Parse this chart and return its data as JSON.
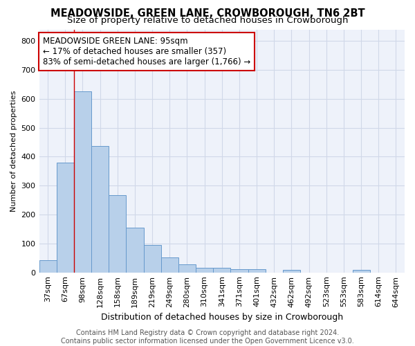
{
  "title": "MEADOWSIDE, GREEN LANE, CROWBOROUGH, TN6 2BT",
  "subtitle": "Size of property relative to detached houses in Crowborough",
  "xlabel": "Distribution of detached houses by size in Crowborough",
  "ylabel": "Number of detached properties",
  "categories": [
    "37sqm",
    "67sqm",
    "98sqm",
    "128sqm",
    "158sqm",
    "189sqm",
    "219sqm",
    "249sqm",
    "280sqm",
    "310sqm",
    "341sqm",
    "371sqm",
    "401sqm",
    "432sqm",
    "462sqm",
    "492sqm",
    "523sqm",
    "553sqm",
    "583sqm",
    "614sqm",
    "644sqm"
  ],
  "values": [
    43,
    380,
    625,
    438,
    268,
    155,
    95,
    52,
    28,
    15,
    15,
    10,
    10,
    0,
    8,
    0,
    0,
    0,
    8,
    0,
    0
  ],
  "bar_color": "#b8d0ea",
  "bar_edge_color": "#6699cc",
  "red_line_x": 1.5,
  "annotation_text": "MEADOWSIDE GREEN LANE: 95sqm\n← 17% of detached houses are smaller (357)\n83% of semi-detached houses are larger (1,766) →",
  "annotation_box_color": "#ffffff",
  "annotation_box_edge": "#cc0000",
  "ylim": [
    0,
    840
  ],
  "yticks": [
    0,
    100,
    200,
    300,
    400,
    500,
    600,
    700,
    800
  ],
  "grid_color": "#d0d8e8",
  "background_color": "#eef2fa",
  "footer": "Contains HM Land Registry data © Crown copyright and database right 2024.\nContains public sector information licensed under the Open Government Licence v3.0.",
  "title_fontsize": 10.5,
  "subtitle_fontsize": 9.5,
  "xlabel_fontsize": 9,
  "ylabel_fontsize": 8,
  "tick_fontsize": 8,
  "annotation_fontsize": 8.5,
  "footer_fontsize": 7
}
